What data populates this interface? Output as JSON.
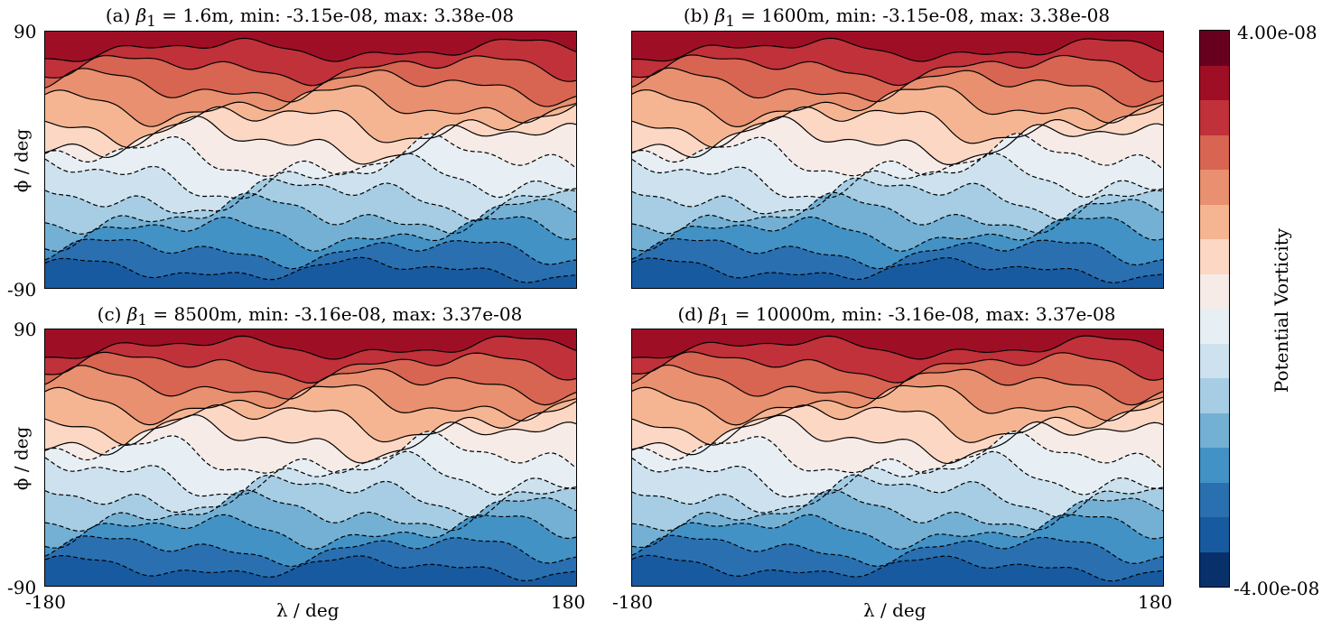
{
  "chart_data": [
    {
      "type": "contour",
      "panel": "a",
      "title_prefix": "(a) ",
      "beta_value": "1.6m",
      "min": "-3.15e-08",
      "max": "3.38e-08"
    },
    {
      "type": "contour",
      "panel": "b",
      "title_prefix": "(b) ",
      "beta_value": "1600m",
      "min": "-3.15e-08",
      "max": "3.38e-08"
    },
    {
      "type": "contour",
      "panel": "c",
      "title_prefix": "(c) ",
      "beta_value": "8500m",
      "min": "-3.16e-08",
      "max": "3.37e-08"
    },
    {
      "type": "contour",
      "panel": "d",
      "title_prefix": "(d) ",
      "beta_value": "10000m",
      "min": "-3.16e-08",
      "max": "3.37e-08"
    }
  ],
  "axes": {
    "xlabel": "λ / deg",
    "ylabel": "ϕ / deg",
    "xlim": [
      -180,
      180
    ],
    "ylim": [
      -90,
      90
    ],
    "x_ticks": [
      "-180",
      "180"
    ],
    "y_ticks": [
      "90",
      "-90"
    ]
  },
  "title_parts": {
    "beta_symbol": "β",
    "beta_sub": "1",
    "eq": " = ",
    "min_label": ", min: ",
    "max_label": ", max: "
  },
  "colorbar": {
    "label": "Potential Vorticity",
    "top_label": "4.00e-08",
    "bottom_label": "-4.00e-08",
    "vmin": -4e-08,
    "vmax": 4e-08,
    "colors": [
      "#67001f",
      "#9e0f26",
      "#c0313a",
      "#d86452",
      "#e8906f",
      "#f6b592",
      "#fbd7c4",
      "#f6ebe6",
      "#e7eff4",
      "#cde2ee",
      "#a6cde3",
      "#74b0d4",
      "#4292c6",
      "#2a70b0",
      "#185aa0",
      "#08306b"
    ]
  }
}
